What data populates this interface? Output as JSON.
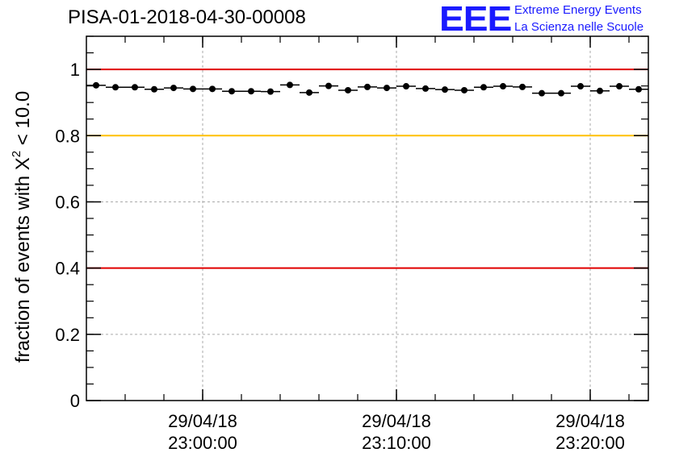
{
  "header": {
    "title": "PISA-01-2018-04-30-00008"
  },
  "logo": {
    "mark": "EEE",
    "line1": "Extreme Energy Events",
    "line2": "La Scienza nelle Scuole",
    "color": "#1a1aff"
  },
  "chart_data": {
    "type": "scatter",
    "title": "PISA-01-2018-04-30-00008",
    "xlabel": "",
    "ylabel": "fraction of events with χ² < 10.0",
    "ylabel_parts": {
      "before": "fraction of events with X",
      "sup": "2",
      "after": " < 10.0"
    },
    "ylim": [
      0,
      1.1
    ],
    "yticks": [
      0,
      0.2,
      0.4,
      0.6,
      0.8,
      1
    ],
    "ytick_labels": [
      "0",
      "0.2",
      "0.4",
      "0.6",
      "0.8",
      "1"
    ],
    "xlim": [
      "2018-04-29T22:54:00",
      "2018-04-29T23:23:00"
    ],
    "xticks": [
      {
        "time": "2018-04-29T23:00:00",
        "line1": "29/04/18",
        "line2": "23:00:00"
      },
      {
        "time": "2018-04-29T23:10:00",
        "line1": "29/04/18",
        "line2": "23:10:00"
      },
      {
        "time": "2018-04-29T23:20:00",
        "line1": "29/04/18",
        "line2": "23:20:00"
      }
    ],
    "grid": true,
    "reference_lines": [
      {
        "y": 1.0,
        "color": "#e00000"
      },
      {
        "y": 0.8,
        "color": "#ffc000"
      },
      {
        "y": 0.4,
        "color": "#e00000"
      }
    ],
    "bin_width_minutes": 1,
    "x": [
      "2018-04-29T22:54:30",
      "2018-04-29T22:55:30",
      "2018-04-29T22:56:30",
      "2018-04-29T22:57:30",
      "2018-04-29T22:58:30",
      "2018-04-29T22:59:30",
      "2018-04-29T23:00:30",
      "2018-04-29T23:01:30",
      "2018-04-29T23:02:30",
      "2018-04-29T23:03:30",
      "2018-04-29T23:04:30",
      "2018-04-29T23:05:30",
      "2018-04-29T23:06:30",
      "2018-04-29T23:07:30",
      "2018-04-29T23:08:30",
      "2018-04-29T23:09:30",
      "2018-04-29T23:10:30",
      "2018-04-29T23:11:30",
      "2018-04-29T23:12:30",
      "2018-04-29T23:13:30",
      "2018-04-29T23:14:30",
      "2018-04-29T23:15:30",
      "2018-04-29T23:16:30",
      "2018-04-29T23:17:30",
      "2018-04-29T23:18:30",
      "2018-04-29T23:19:30",
      "2018-04-29T23:20:30",
      "2018-04-29T23:21:30",
      "2018-04-29T23:22:30"
    ],
    "y": [
      0.952,
      0.946,
      0.946,
      0.94,
      0.944,
      0.941,
      0.941,
      0.934,
      0.934,
      0.933,
      0.953,
      0.93,
      0.95,
      0.937,
      0.947,
      0.944,
      0.949,
      0.942,
      0.939,
      0.937,
      0.946,
      0.949,
      0.947,
      0.928,
      0.928,
      0.949,
      0.935,
      0.949,
      0.94
    ],
    "marker_color": "#000000"
  }
}
